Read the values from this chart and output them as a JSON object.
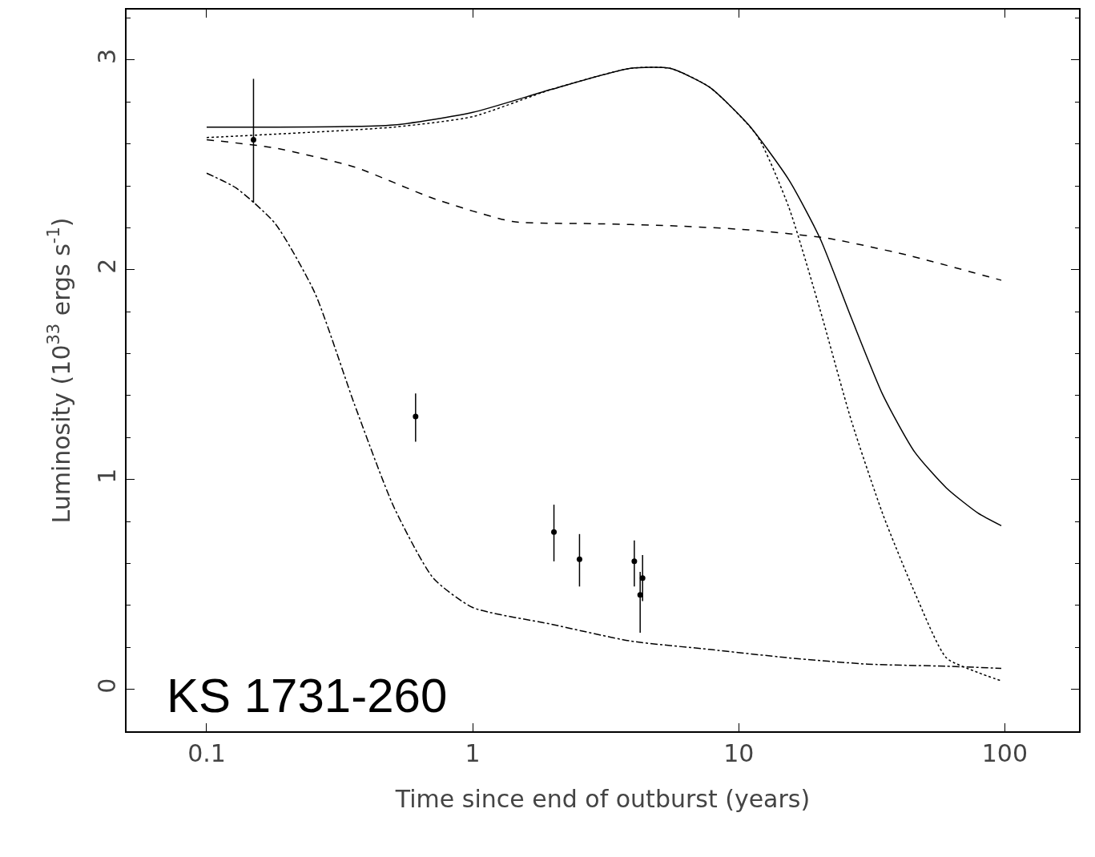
{
  "chart_data": {
    "type": "line",
    "xlabel": "Time since end of outburst (years)",
    "ylabel": "Luminosity (10$^{33}$ ergs s$^{-1}$)",
    "log": "x",
    "xlim": [
      0.05,
      190
    ],
    "ylim": [
      -0.2,
      3.24
    ],
    "xticks": [
      0.1,
      1,
      10,
      100
    ],
    "yticks": [
      0,
      1,
      2,
      3
    ],
    "annotations": [
      "KS 1731-260"
    ],
    "series": [
      {
        "line_style": "solid",
        "color": "#000000",
        "x": [
          0.1,
          0.505,
          1,
          1.98,
          3.92,
          5.52,
          7.77,
          10.9,
          15.4,
          20.2,
          26.5,
          34.9,
          45.9,
          60.3,
          79.3,
          97
        ],
        "values": [
          2.68,
          2.69,
          2.75,
          2.86,
          2.96,
          2.96,
          2.87,
          2.69,
          2.43,
          2.15,
          1.77,
          1.4,
          1.13,
          0.96,
          0.84,
          0.78
        ]
      },
      {
        "line_style": "dotted",
        "color": "#000000",
        "x": [
          0.1,
          0.505,
          1,
          1.98,
          3.92,
          5.52,
          7.77,
          11.7,
          15.4,
          20.2,
          26.5,
          34.9,
          45.9,
          60.3,
          79.3,
          97
        ],
        "values": [
          2.63,
          2.68,
          2.73,
          2.86,
          2.96,
          2.96,
          2.87,
          2.64,
          2.3,
          1.81,
          1.28,
          0.83,
          0.46,
          0.15,
          0.08,
          0.04
        ]
      },
      {
        "line_style": "dashed",
        "color": "#000000",
        "x": [
          0.1,
          0.181,
          0.359,
          0.711,
          1.41,
          2.79,
          5.52,
          10.9,
          21.6,
          42.9,
          97
        ],
        "values": [
          2.62,
          2.58,
          2.49,
          2.34,
          2.23,
          2.22,
          2.21,
          2.19,
          2.15,
          2.07,
          1.95
        ]
      },
      {
        "line_style": "dashdot",
        "color": "#000000",
        "x": [
          0.1,
          0.129,
          0.181,
          0.255,
          0.359,
          0.505,
          0.711,
          1,
          1.98,
          3.92,
          7.77,
          15.4,
          30.5,
          60.3,
          97
        ],
        "values": [
          2.46,
          2.39,
          2.22,
          1.89,
          1.36,
          0.87,
          0.53,
          0.39,
          0.31,
          0.23,
          0.19,
          0.15,
          0.12,
          0.11,
          0.1
        ]
      },
      {
        "type": "scatter",
        "marker": "circle",
        "color": "#000000",
        "x": [
          0.15,
          0.61,
          2.02,
          2.52,
          4.05,
          4.35,
          4.26
        ],
        "values": [
          2.62,
          1.3,
          0.75,
          0.62,
          0.61,
          0.53,
          0.45
        ],
        "errors": [
          [
            2.32,
            2.91
          ],
          [
            1.18,
            1.41
          ],
          [
            0.61,
            0.88
          ],
          [
            0.49,
            0.74
          ],
          [
            0.49,
            0.71
          ],
          [
            0.42,
            0.64
          ],
          [
            0.27,
            0.56
          ]
        ]
      }
    ]
  }
}
